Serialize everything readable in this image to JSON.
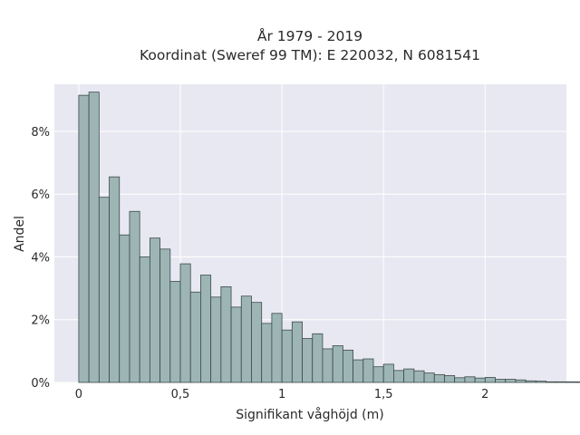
{
  "chart_data": {
    "type": "bar",
    "title": [
      "År 1979 - 2019",
      "Koordinat (Sweref 99 TM): E 220032, N 6081541"
    ],
    "xlabel": "Signifikant våghöjd (m)",
    "ylabel": "Andel",
    "xlim": [
      -0.12,
      2.4
    ],
    "ylim": [
      0,
      9.5
    ],
    "xticks": [
      0,
      0.5,
      1,
      1.5,
      2
    ],
    "xtick_labels": [
      "0",
      "0,5",
      "1",
      "1,5",
      "2"
    ],
    "yticks": [
      0,
      2,
      4,
      6,
      8
    ],
    "ytick_labels": [
      "0%",
      "2%",
      "4%",
      "6%",
      "8%"
    ],
    "grid": true,
    "bin_width": 0.05,
    "bin_start": 0,
    "values": [
      9.15,
      9.25,
      5.9,
      6.55,
      4.7,
      5.45,
      4.0,
      4.6,
      4.25,
      3.22,
      3.78,
      2.88,
      3.42,
      2.72,
      3.05,
      2.4,
      2.75,
      2.55,
      1.88,
      2.2,
      1.67,
      1.93,
      1.4,
      1.55,
      1.07,
      1.17,
      1.03,
      0.72,
      0.75,
      0.5,
      0.58,
      0.38,
      0.43,
      0.37,
      0.3,
      0.25,
      0.22,
      0.15,
      0.18,
      0.14,
      0.16,
      0.1,
      0.1,
      0.08,
      0.05,
      0.04,
      0.02,
      0.02,
      0.02,
      0.02,
      0.02
    ]
  },
  "colors": {
    "plot_bg": "#e8e8f2",
    "grid": "#ffffff",
    "bar_fill": "#9db5b5",
    "bar_stroke": "#3d4a4a"
  }
}
